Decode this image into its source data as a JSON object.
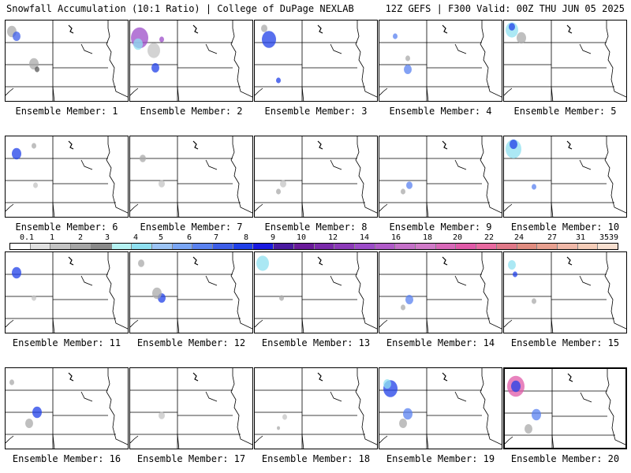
{
  "header": {
    "left_title": "Snowfall Accumulation (10:1 Ratio) | College of DuPage NEXLAB",
    "right_title": "12Z GEFS | F300 Valid: 00Z THU JUN 05 2025"
  },
  "scale": {
    "labels": [
      "0.1",
      "1",
      "2",
      "3",
      "4",
      "5",
      "6",
      "7",
      "8",
      "9",
      "10",
      "12",
      "14",
      "16",
      "18",
      "20",
      "22",
      "24",
      "27",
      "31",
      "35",
      "39"
    ],
    "colors": [
      "#ffffff",
      "#e0e0e0",
      "#c4c4c4",
      "#a6a6a6",
      "#8a8a8a",
      "#b5f2f2",
      "#8fe0f0",
      "#9cc4f5",
      "#7aa6f5",
      "#5a82f0",
      "#3d5ee8",
      "#2040e8",
      "#1a1ae0",
      "#4a1aa0",
      "#6a1a9a",
      "#7a2aaa",
      "#8c3ab8",
      "#9c4cc8",
      "#b05ac8",
      "#c470c8",
      "#d07ac8",
      "#d868b8",
      "#e05aa8",
      "#e86aa0",
      "#e07888",
      "#e08c80",
      "#e8a090",
      "#f0b8a8",
      "#f5cdb8",
      "#f8e0d0"
    ]
  },
  "panels": [
    {
      "label": "Ensemble Member: 1"
    },
    {
      "label": "Ensemble Member: 2"
    },
    {
      "label": "Ensemble Member: 3"
    },
    {
      "label": "Ensemble Member: 4"
    },
    {
      "label": "Ensemble Member: 5"
    },
    {
      "label": "Ensemble Member: 6"
    },
    {
      "label": "Ensemble Member: 7"
    },
    {
      "label": "Ensemble Member: 8"
    },
    {
      "label": "Ensemble Member: 9"
    },
    {
      "label": "Ensemble Member: 10"
    },
    {
      "label": "Ensemble Member: 11"
    },
    {
      "label": "Ensemble Member: 12"
    },
    {
      "label": "Ensemble Member: 13"
    },
    {
      "label": "Ensemble Member: 14"
    },
    {
      "label": "Ensemble Member: 15"
    },
    {
      "label": "Ensemble Member: 16"
    },
    {
      "label": "Ensemble Member: 17"
    },
    {
      "label": "Ensemble Member: 18"
    },
    {
      "label": "Ensemble Member: 19"
    },
    {
      "label": "Ensemble Member: 20"
    }
  ]
}
